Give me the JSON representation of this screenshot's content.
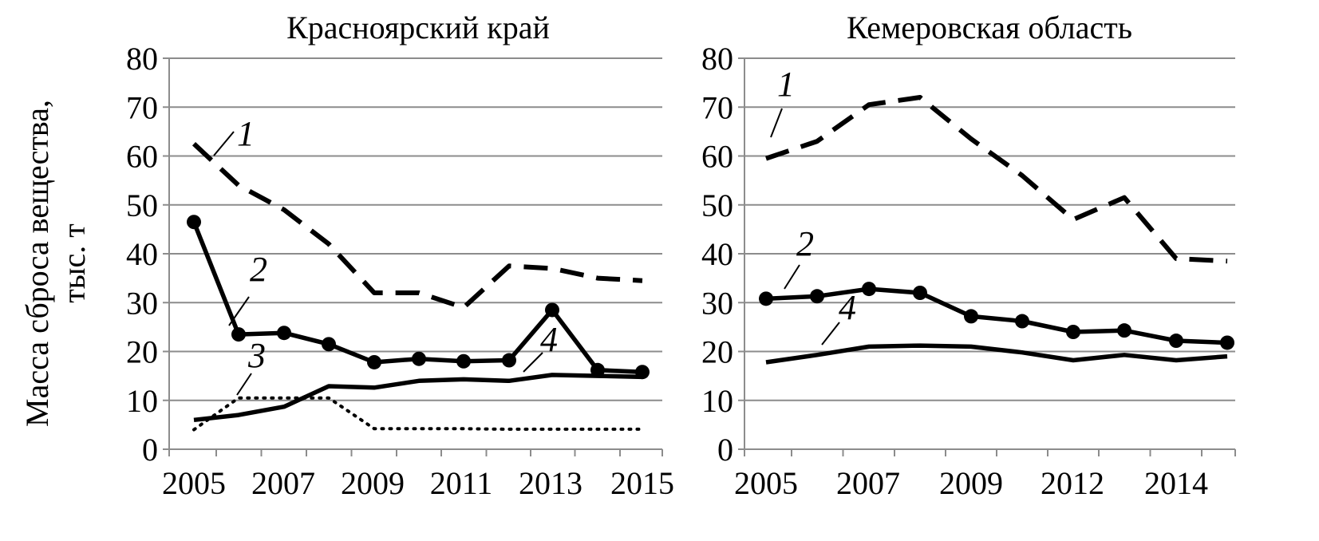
{
  "figure": {
    "ylabel_line1": "Масса сброса вещества,",
    "ylabel_line2": "тыс. т"
  },
  "chart_data": [
    {
      "type": "line",
      "title": "Красноярский край",
      "xlabel": "",
      "ylabel": "Масса сброса вещества, тыс. т",
      "ylim": [
        0,
        80
      ],
      "yticks": [
        0,
        10,
        20,
        30,
        40,
        50,
        60,
        70,
        80
      ],
      "x": [
        2005,
        2006,
        2007,
        2008,
        2009,
        2010,
        2011,
        2012,
        2013,
        2014,
        2015
      ],
      "xtick_labels": [
        "2005",
        "2007",
        "2009",
        "2011",
        "2013",
        "2015"
      ],
      "grid": true,
      "series": [
        {
          "name": "1",
          "style": "dashed",
          "values": [
            62.5,
            54,
            49,
            42,
            32,
            32,
            29,
            37.5,
            37,
            35,
            34.5
          ]
        },
        {
          "name": "2",
          "style": "solid-markers",
          "values": [
            46.5,
            23.5,
            23.8,
            21.5,
            17.8,
            18.5,
            18,
            18.2,
            28.5,
            16.2,
            15.8
          ]
        },
        {
          "name": "3",
          "style": "dotted",
          "values": [
            4,
            10.5,
            10.5,
            10.5,
            4.2,
            4.2,
            4.2,
            4.1,
            4.1,
            4.1,
            4.1
          ]
        },
        {
          "name": "4",
          "style": "solid",
          "values": [
            6,
            7,
            8.7,
            12.9,
            12.6,
            14,
            14.3,
            14,
            15.2,
            15,
            14.8
          ]
        }
      ]
    },
    {
      "type": "line",
      "title": "Кемеровская область",
      "xlabel": "",
      "ylabel": "",
      "ylim": [
        0,
        80
      ],
      "yticks": [
        0,
        10,
        20,
        30,
        40,
        50,
        60,
        70,
        80
      ],
      "x": [
        2005,
        2006,
        2007,
        2008,
        2009,
        2010,
        2011,
        2012,
        2013,
        2014
      ],
      "xtick_labels": [
        "2005",
        "2007",
        "2009",
        "2012",
        "2014"
      ],
      "grid": true,
      "series": [
        {
          "name": "1",
          "style": "dashed",
          "values": [
            59.5,
            63,
            70.5,
            72,
            63.5,
            56,
            47,
            51.5,
            39,
            38.5
          ]
        },
        {
          "name": "2",
          "style": "solid-markers",
          "values": [
            30.8,
            31.3,
            32.8,
            32,
            27.2,
            26.2,
            24,
            24.3,
            22.2,
            21.8
          ]
        },
        {
          "name": "4",
          "style": "solid",
          "values": [
            17.8,
            19.3,
            21,
            21.2,
            21,
            19.8,
            18.2,
            19.3,
            18.2,
            19
          ]
        }
      ]
    }
  ]
}
